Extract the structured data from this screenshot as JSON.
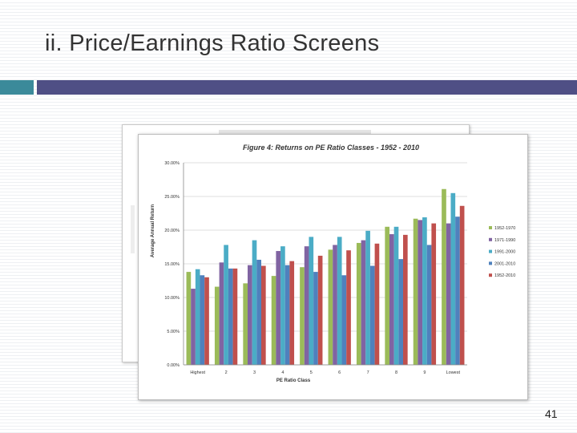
{
  "slide": {
    "title": "ii. Price/Earnings Ratio Screens",
    "page_number": "41",
    "back_caption": "Figure 4: Returns on PE Ratio Classes - 1952 - 2010",
    "back_ylabel": "Average Annual Return"
  },
  "colors": {
    "accent_teal": "#3b8a9a",
    "accent_bar": "#4f4f85"
  },
  "chart_data": {
    "type": "bar",
    "title": "Figure 4: Returns on PE Ratio Classes - 1952 - 2010",
    "xlabel": "PE Ratio Class",
    "ylabel": "Average Annual Return",
    "ylim": [
      0,
      30
    ],
    "yticks": [
      "0.00%",
      "5.00%",
      "10.00%",
      "15.00%",
      "20.00%",
      "25.00%",
      "30.00%"
    ],
    "grid": true,
    "legend_position": "right",
    "categories": [
      "Highest",
      "2",
      "3",
      "4",
      "5",
      "6",
      "7",
      "8",
      "9",
      "Lowest"
    ],
    "series": [
      {
        "name": "1952-1970",
        "color": "#9bbb59",
        "values": [
          13.8,
          11.6,
          12.1,
          13.2,
          14.5,
          17.1,
          18.1,
          20.5,
          21.7,
          26.1
        ]
      },
      {
        "name": "1971-1990",
        "color": "#8064a2",
        "values": [
          11.3,
          15.2,
          14.8,
          16.9,
          17.6,
          17.8,
          18.5,
          19.4,
          21.5,
          21.0
        ]
      },
      {
        "name": "1991-2000",
        "color": "#4bacc6",
        "values": [
          14.2,
          17.8,
          18.5,
          17.6,
          19.0,
          19.0,
          19.9,
          20.5,
          21.9,
          25.5
        ]
      },
      {
        "name": "2001-2010",
        "color": "#4f81bd",
        "values": [
          13.3,
          14.3,
          15.6,
          14.8,
          13.8,
          13.3,
          14.7,
          15.7,
          17.8,
          22.0
        ]
      },
      {
        "name": "1952-2010",
        "color": "#c0504d",
        "values": [
          13.0,
          14.3,
          14.7,
          15.4,
          16.2,
          17.0,
          18.0,
          19.3,
          21.0,
          23.6
        ]
      }
    ]
  }
}
